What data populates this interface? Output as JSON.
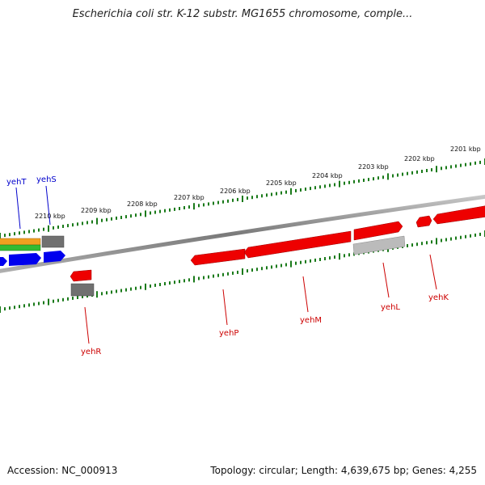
{
  "title": "Escherichia coli str. K-12 substr. MG1655 chromosome, comple...",
  "footer": {
    "accession": "Accession: NC_000913",
    "summary": "Topology: circular; Length: 4,639,675 bp; Genes: 4,255"
  },
  "scale": {
    "labels": [
      "2201 kbp",
      "2202 kbp",
      "2203 kbp",
      "2204 kbp",
      "2205 kbp",
      "2206 kbp",
      "2207 kbp",
      "2208 kbp",
      "2209 kbp",
      "2210 kbp"
    ]
  },
  "genes": [
    {
      "name": "yehT",
      "color": "#0000cc"
    },
    {
      "name": "yehS",
      "color": "#0000cc"
    },
    {
      "name": "yehR",
      "color": "#cc0000"
    },
    {
      "name": "yehP",
      "color": "#cc0000"
    },
    {
      "name": "yehM",
      "color": "#cc0000"
    },
    {
      "name": "yehL",
      "color": "#cc0000"
    },
    {
      "name": "yehK",
      "color": "#cc0000"
    }
  ],
  "colors": {
    "backbone": "#808080",
    "tick": "#1a7a1a",
    "red": "#ee0000",
    "blue": "#0000ee",
    "gray": "#666666",
    "orange": "#f0a020",
    "green": "#33aa33"
  }
}
